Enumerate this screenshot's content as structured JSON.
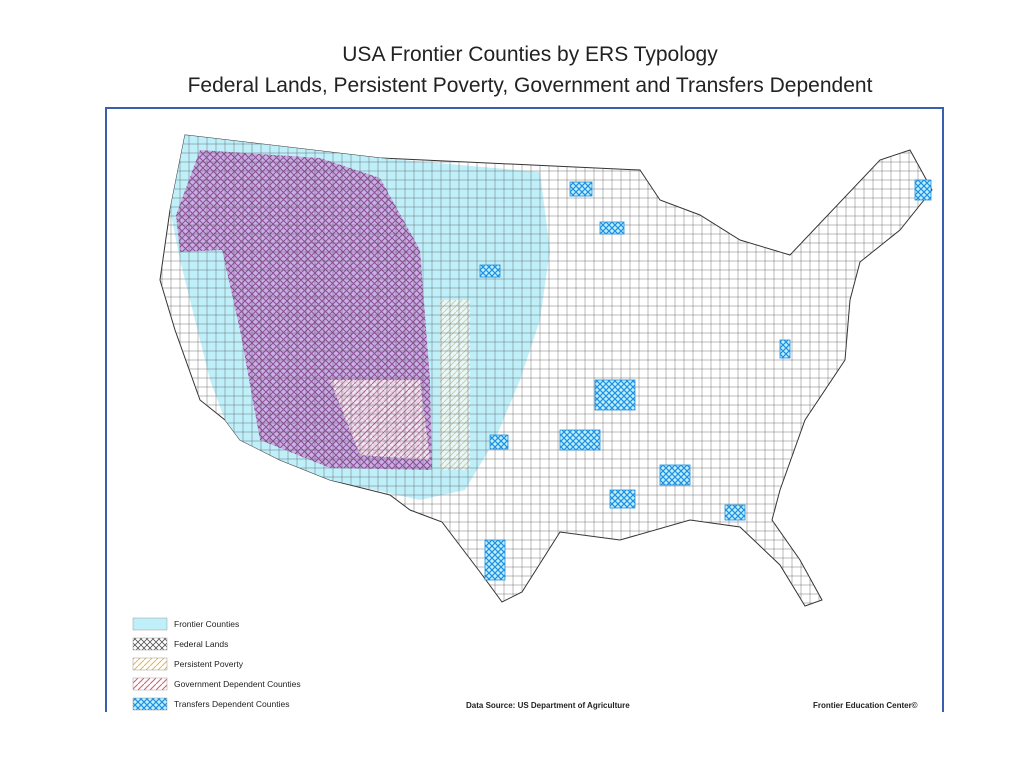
{
  "title": {
    "line1": "USA Frontier Counties by ERS Typology",
    "line2": "Federal Lands, Persistent Poverty, Government and Transfers Dependent"
  },
  "legend": {
    "items": [
      {
        "label": "Frontier Counties"
      },
      {
        "label": "Federal Lands"
      },
      {
        "label": "Persistent Poverty"
      },
      {
        "label": "Government Dependent Counties"
      },
      {
        "label": "Transfers Dependent Counties"
      }
    ]
  },
  "source": "Data Source:  US Department of Agriculture",
  "credit": "Frontier Education Center©"
}
